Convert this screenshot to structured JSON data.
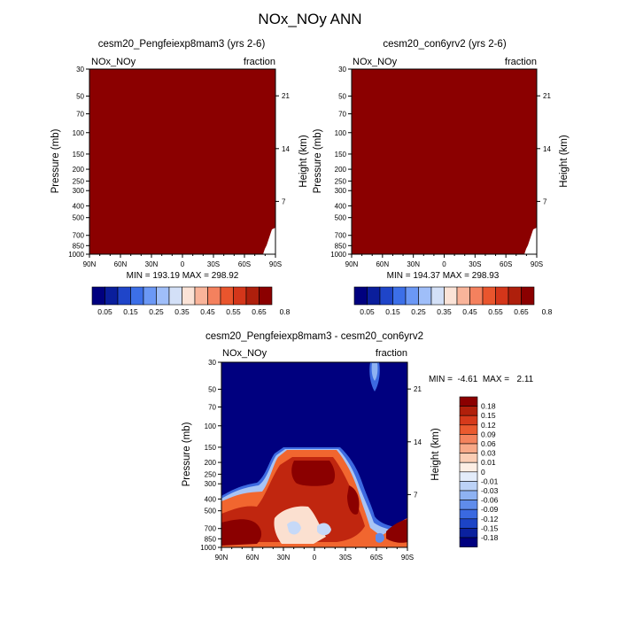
{
  "figure_title": "NOx_NOy ANN",
  "chart_data": [
    {
      "type": "heatmap",
      "title": "cesm20_Pengfeiexp8mam3 (yrs 2-6)",
      "left_label": "NOx_NOy",
      "right_label": "fraction",
      "xlabel": "",
      "ylabel": "Pressure (mb)",
      "ylabel_right": "Height (km)",
      "x_ticks": [
        "90N",
        "60N",
        "30N",
        "0",
        "30S",
        "60S",
        "90S"
      ],
      "y_ticks": [
        30,
        50,
        70,
        100,
        150,
        200,
        250,
        300,
        400,
        500,
        700,
        850,
        1000
      ],
      "y_range": [
        30,
        1000
      ],
      "height_ticks": [
        7,
        14,
        21
      ],
      "stats_text": "MIN = 193.19  MAX = 298.92",
      "min": 193.19,
      "max": 298.92,
      "fill_color": "#8b0000"
    },
    {
      "type": "heatmap",
      "title": "cesm20_con6yrv2 (yrs 2-6)",
      "left_label": "NOx_NOy",
      "right_label": "fraction",
      "xlabel": "",
      "ylabel": "Pressure (mb)",
      "ylabel_right": "Height (km)",
      "x_ticks": [
        "90N",
        "60N",
        "30N",
        "0",
        "30S",
        "60S",
        "90S"
      ],
      "y_ticks": [
        30,
        50,
        70,
        100,
        150,
        200,
        250,
        300,
        400,
        500,
        700,
        850,
        1000
      ],
      "y_range": [
        30,
        1000
      ],
      "height_ticks": [
        7,
        14,
        21
      ],
      "stats_text": "MIN = 194.37  MAX = 298.93",
      "min": 194.37,
      "max": 298.93,
      "fill_color": "#8b0000"
    },
    {
      "type": "heatmap",
      "title": "cesm20_Pengfeiexp8mam3 - cesm20_con6yrv2",
      "left_label": "NOx_NOy",
      "right_label": "fraction",
      "xlabel": "",
      "ylabel": "Pressure (mb)",
      "ylabel_right": "Height (km)",
      "x_ticks": [
        "90N",
        "60N",
        "30N",
        "0",
        "30S",
        "60S",
        "90S"
      ],
      "y_ticks": [
        30,
        50,
        70,
        100,
        150,
        200,
        250,
        300,
        400,
        500,
        700,
        850,
        1000
      ],
      "y_range": [
        30,
        1000
      ],
      "height_ticks": [
        7,
        14,
        21
      ],
      "stats_text": "MIN =  -4.61  MAX =   2.11",
      "min": -4.61,
      "max": 2.11,
      "contour_levels": [
        -0.18,
        -0.15,
        -0.12,
        -0.09,
        -0.06,
        -0.03,
        -0.01,
        0,
        0.01,
        0.03,
        0.06,
        0.09,
        0.12,
        0.15,
        0.18
      ]
    }
  ],
  "colorbar_horizontal": {
    "labels": [
      "0.05",
      "0.15",
      "0.25",
      "0.35",
      "0.45",
      "0.55",
      "0.65",
      "0.8"
    ],
    "colors": [
      "#00007f",
      "#0a1e9c",
      "#1f45c9",
      "#3c6fe8",
      "#6b98f5",
      "#9fbef9",
      "#d3e0f7",
      "#fbe3d7",
      "#f9b49a",
      "#f4815e",
      "#e9552d",
      "#d4361a",
      "#ae1f0c",
      "#8b0000"
    ]
  },
  "colorbar_vertical": {
    "labels": [
      "0.18",
      "0.15",
      "0.12",
      "0.09",
      "0.06",
      "0.03",
      "0.01",
      "0",
      "-0.01",
      "-0.03",
      "-0.06",
      "-0.09",
      "-0.12",
      "-0.15",
      "-0.18"
    ],
    "colors": [
      "#8b0000",
      "#b1200b",
      "#d63a1b",
      "#ea5a2f",
      "#f4835d",
      "#f8a988",
      "#fbcdb4",
      "#fdeee4",
      "#e3ecfa",
      "#bcd2f7",
      "#8eb2f2",
      "#5f8ceb",
      "#3a69e0",
      "#1c44c6",
      "#0b219e",
      "#00007f"
    ]
  },
  "colors": {
    "deep_red": "#8b0000",
    "deep_blue": "#00007f"
  }
}
